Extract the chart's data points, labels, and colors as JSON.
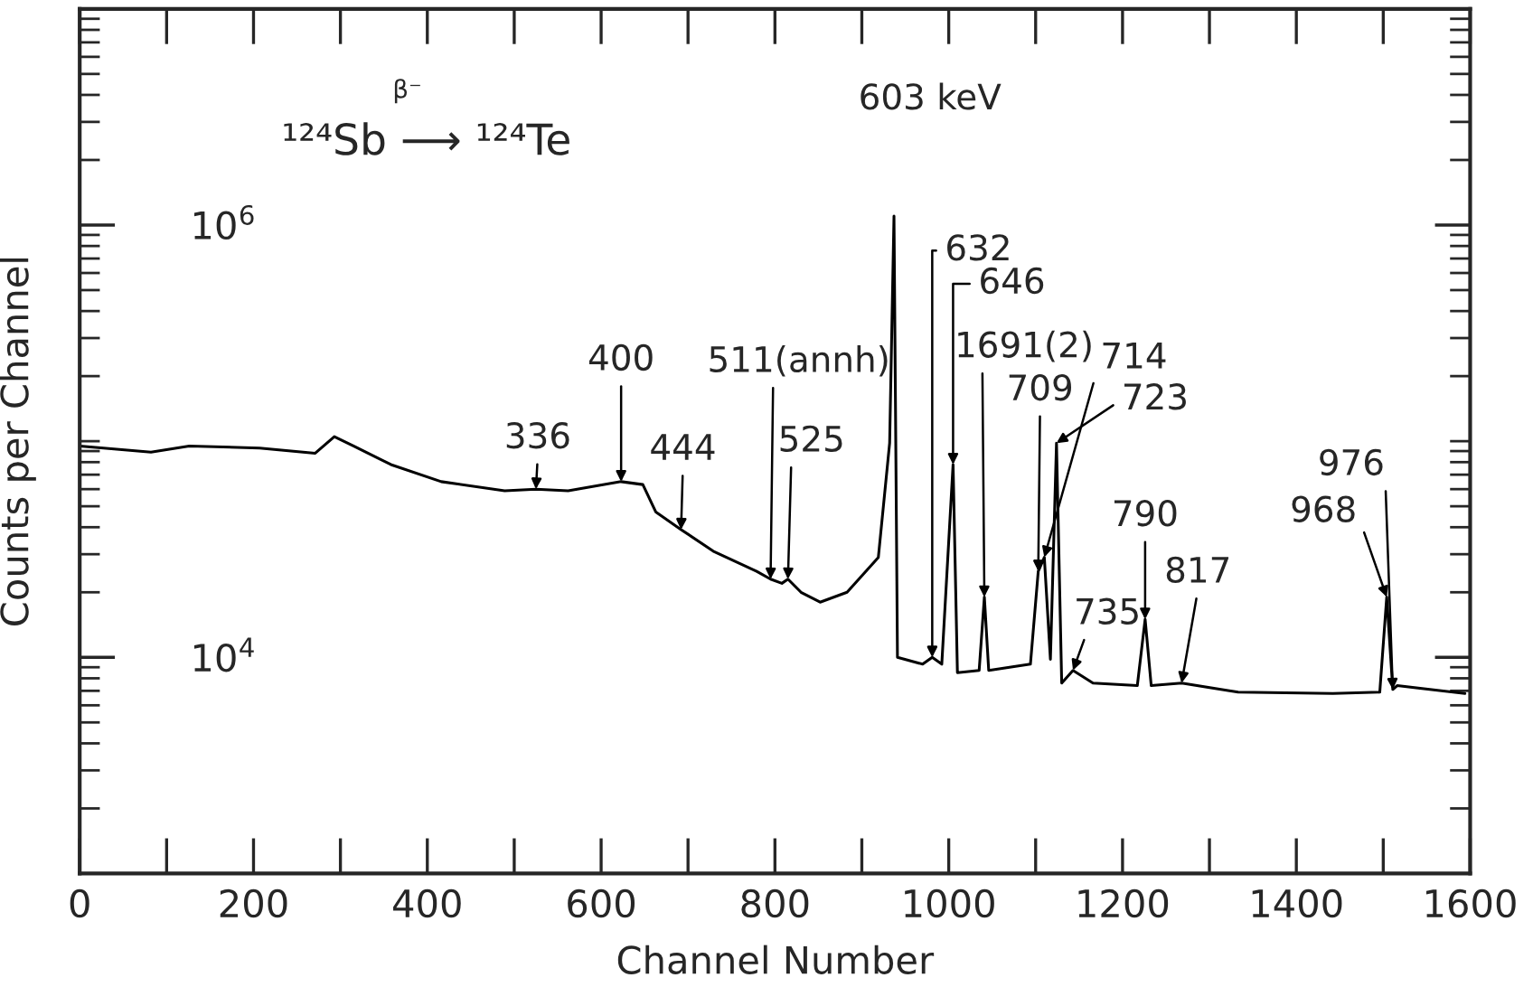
{
  "chart_data": {
    "type": "line",
    "xlabel": "Channel Number",
    "ylabel": "Counts per Channel",
    "log": "y",
    "grid": false,
    "legend": false,
    "marker": "none",
    "line_style": "solid",
    "xlim": [
      0,
      1600
    ],
    "xticks": [
      0,
      200,
      400,
      600,
      800,
      1000,
      1200,
      1400,
      1600
    ],
    "ylim": [
      1000,
      10000000
    ],
    "yticks": [
      {
        "value": 10000,
        "label": "10$^{4}$"
      },
      {
        "value": 1000000,
        "label": "10$^{6}$"
      }
    ],
    "series": [
      {
        "color": "#000000",
        "x": [
          0,
          82,
          126,
          207,
          271,
          293,
          315,
          358,
          416,
          489,
          525,
          562,
          623,
          648,
          663,
          692,
          729,
          779,
          795,
          808,
          815,
          830,
          852,
          883,
          919,
          932,
          937,
          941,
          970,
          981,
          992,
          1005,
          1010,
          1035,
          1041,
          1046,
          1094,
          1103,
          1110,
          1117,
          1124,
          1130,
          1143,
          1166,
          1217,
          1226,
          1233,
          1268,
          1333,
          1442,
          1496,
          1504,
          1511,
          1516,
          1594
        ],
        "values": [
          95000,
          89000,
          95000,
          93000,
          88000,
          105000,
          95000,
          78000,
          65000,
          59000,
          60000,
          59000,
          65000,
          63000,
          47000,
          39000,
          31000,
          25000,
          23000,
          22000,
          23000,
          20000,
          18000,
          20000,
          29000,
          98000,
          1100000,
          10000,
          9300,
          10000,
          9300,
          78000,
          8500,
          8700,
          19000,
          8700,
          9300,
          25000,
          29000,
          9800,
          98000,
          7600,
          8700,
          7600,
          7400,
          15000,
          7400,
          7600,
          6900,
          6800,
          6900,
          19000,
          7100,
          7400,
          6800
        ]
      }
    ],
    "annotations": [
      "¹²⁴Sb ⟶ ¹²⁴Te",
      "β⁻",
      "603 keV",
      {
        "text": "336",
        "x": 525,
        "y": 60000
      },
      {
        "text": "400",
        "x": 623,
        "y": 65000
      },
      {
        "text": "444",
        "x": 692,
        "y": 39000
      },
      {
        "text": "511(annh)",
        "x": 795,
        "y": 23000
      },
      {
        "text": "525",
        "x": 815,
        "y": 23000
      },
      {
        "text": "632",
        "x": 981,
        "y": 10000
      },
      {
        "text": "646",
        "x": 1005,
        "y": 78000
      },
      {
        "text": "1691(2)",
        "x": 1041,
        "y": 19000
      },
      {
        "text": "709",
        "x": 1103,
        "y": 25000
      },
      {
        "text": "714",
        "x": 1110,
        "y": 29000
      },
      {
        "text": "723",
        "x": 1124,
        "y": 98000
      },
      {
        "text": "735",
        "x": 1143,
        "y": 8700
      },
      {
        "text": "790",
        "x": 1226,
        "y": 15000
      },
      {
        "text": "817",
        "x": 1268,
        "y": 7600
      },
      {
        "text": "968",
        "x": 1504,
        "y": 19000
      },
      {
        "text": "976",
        "x": 1511,
        "y": 7100
      }
    ]
  }
}
